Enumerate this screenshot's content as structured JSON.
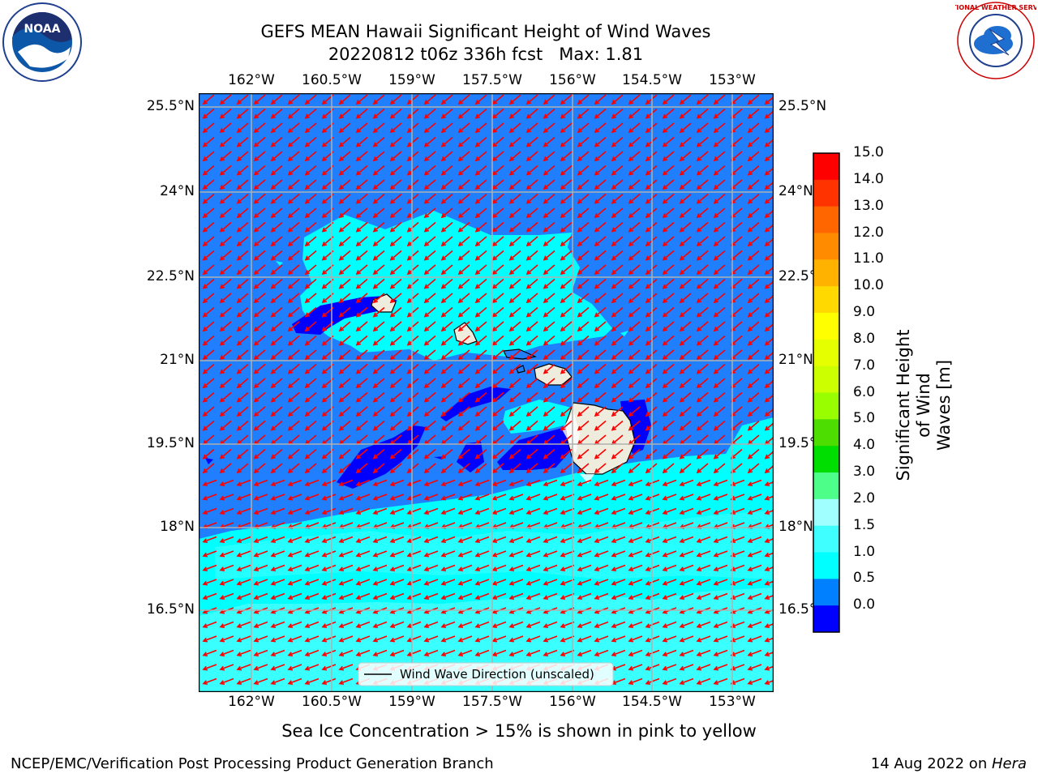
{
  "header": {
    "title": "GEFS MEAN Hawaii Significant Height of Wind Waves",
    "subtitle": "20220812 t06z 336h fcst   Max: 1.81"
  },
  "map": {
    "lon_labels": [
      "162°W",
      "160.5°W",
      "159°W",
      "157.5°W",
      "156°W",
      "154.5°W",
      "153°W"
    ],
    "lat_labels": [
      "25.5°N",
      "24°N",
      "22.5°N",
      "21°N",
      "19.5°N",
      "18°N",
      "16.5°N"
    ],
    "legend_label": "Wind Wave Direction (unscaled)",
    "colors": {
      "land": "#eeecdc",
      "ocean_1_0_to_1_5": "#007fff",
      "ocean_0_5_to_1_0": "#0000ff",
      "ocean_1_5_to_2_0": "#00ffff",
      "ocean_2_0_to_3_0": "#40ffff",
      "arrows": "#ff0000",
      "grid": "#b0b0b0"
    }
  },
  "colorbar": {
    "label_line1": "Significant Height of Wind",
    "label_line2": "Waves [m]",
    "ticks": [
      "15.0",
      "14.0",
      "13.0",
      "12.0",
      "11.0",
      "10.0",
      "9.0",
      "8.0",
      "7.0",
      "6.0",
      "5.0",
      "4.0",
      "3.0",
      "2.0",
      "1.5",
      "1.0",
      "0.5",
      "0.0"
    ],
    "colors": [
      "#ff0000",
      "#ff3300",
      "#ff6600",
      "#ff8c00",
      "#ffb300",
      "#ffd900",
      "#ffff00",
      "#e6ff00",
      "#ccff00",
      "#99ff00",
      "#4ddd00",
      "#00dd00",
      "#4dff88",
      "#a0ffff",
      "#40ffff",
      "#00ffff",
      "#0080ff",
      "#0000ff"
    ]
  },
  "notes": {
    "sea_ice": "Sea Ice Concentration > 15% is shown in pink to yellow"
  },
  "footer": {
    "left": "NCEP/EMC/Verification Post Processing Product Generation Branch",
    "right_date": "14 Aug 2022 on ",
    "right_machine": "Hera"
  },
  "logos": {
    "left": "noaa-logo",
    "left_text": "NOAA",
    "right": "nws-logo",
    "right_text": "NATIONAL WEATHER SERVICE"
  }
}
